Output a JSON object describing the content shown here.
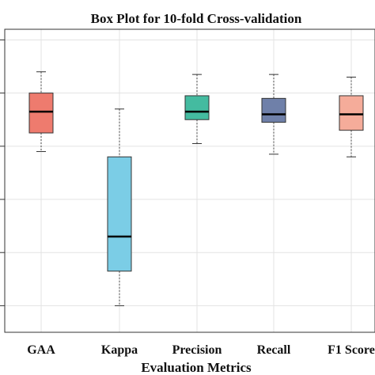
{
  "chart_data": {
    "type": "box",
    "title": "Box Plot for 10-fold Cross-validation",
    "xlabel": "Evaluation Metrics",
    "ylabel": "",
    "categories": [
      "GAA",
      "Kappa",
      "Precision",
      "Recall",
      "F1 Score"
    ],
    "ylim": [
      0.0,
      1.14
    ],
    "yticks": [
      0.1,
      0.3,
      0.5,
      0.7,
      0.9,
      1.1
    ],
    "grid": true,
    "boxes": [
      {
        "category": "GAA",
        "min": 0.68,
        "q1": 0.75,
        "median": 0.83,
        "q3": 0.9,
        "max": 0.98,
        "color": "#EE7B6E"
      },
      {
        "category": "Kappa",
        "min": 0.1,
        "q1": 0.23,
        "median": 0.36,
        "q3": 0.66,
        "max": 0.84,
        "color": "#7BCDE6"
      },
      {
        "category": "Precision",
        "min": 0.71,
        "q1": 0.8,
        "median": 0.83,
        "q3": 0.89,
        "max": 0.97,
        "color": "#44BBA0"
      },
      {
        "category": "Recall",
        "min": 0.67,
        "q1": 0.79,
        "median": 0.82,
        "q3": 0.88,
        "max": 0.97,
        "color": "#6F80A9"
      },
      {
        "category": "F1 Score",
        "min": 0.66,
        "q1": 0.76,
        "median": 0.82,
        "q3": 0.89,
        "max": 0.96,
        "color": "#F5AC9A"
      }
    ]
  }
}
